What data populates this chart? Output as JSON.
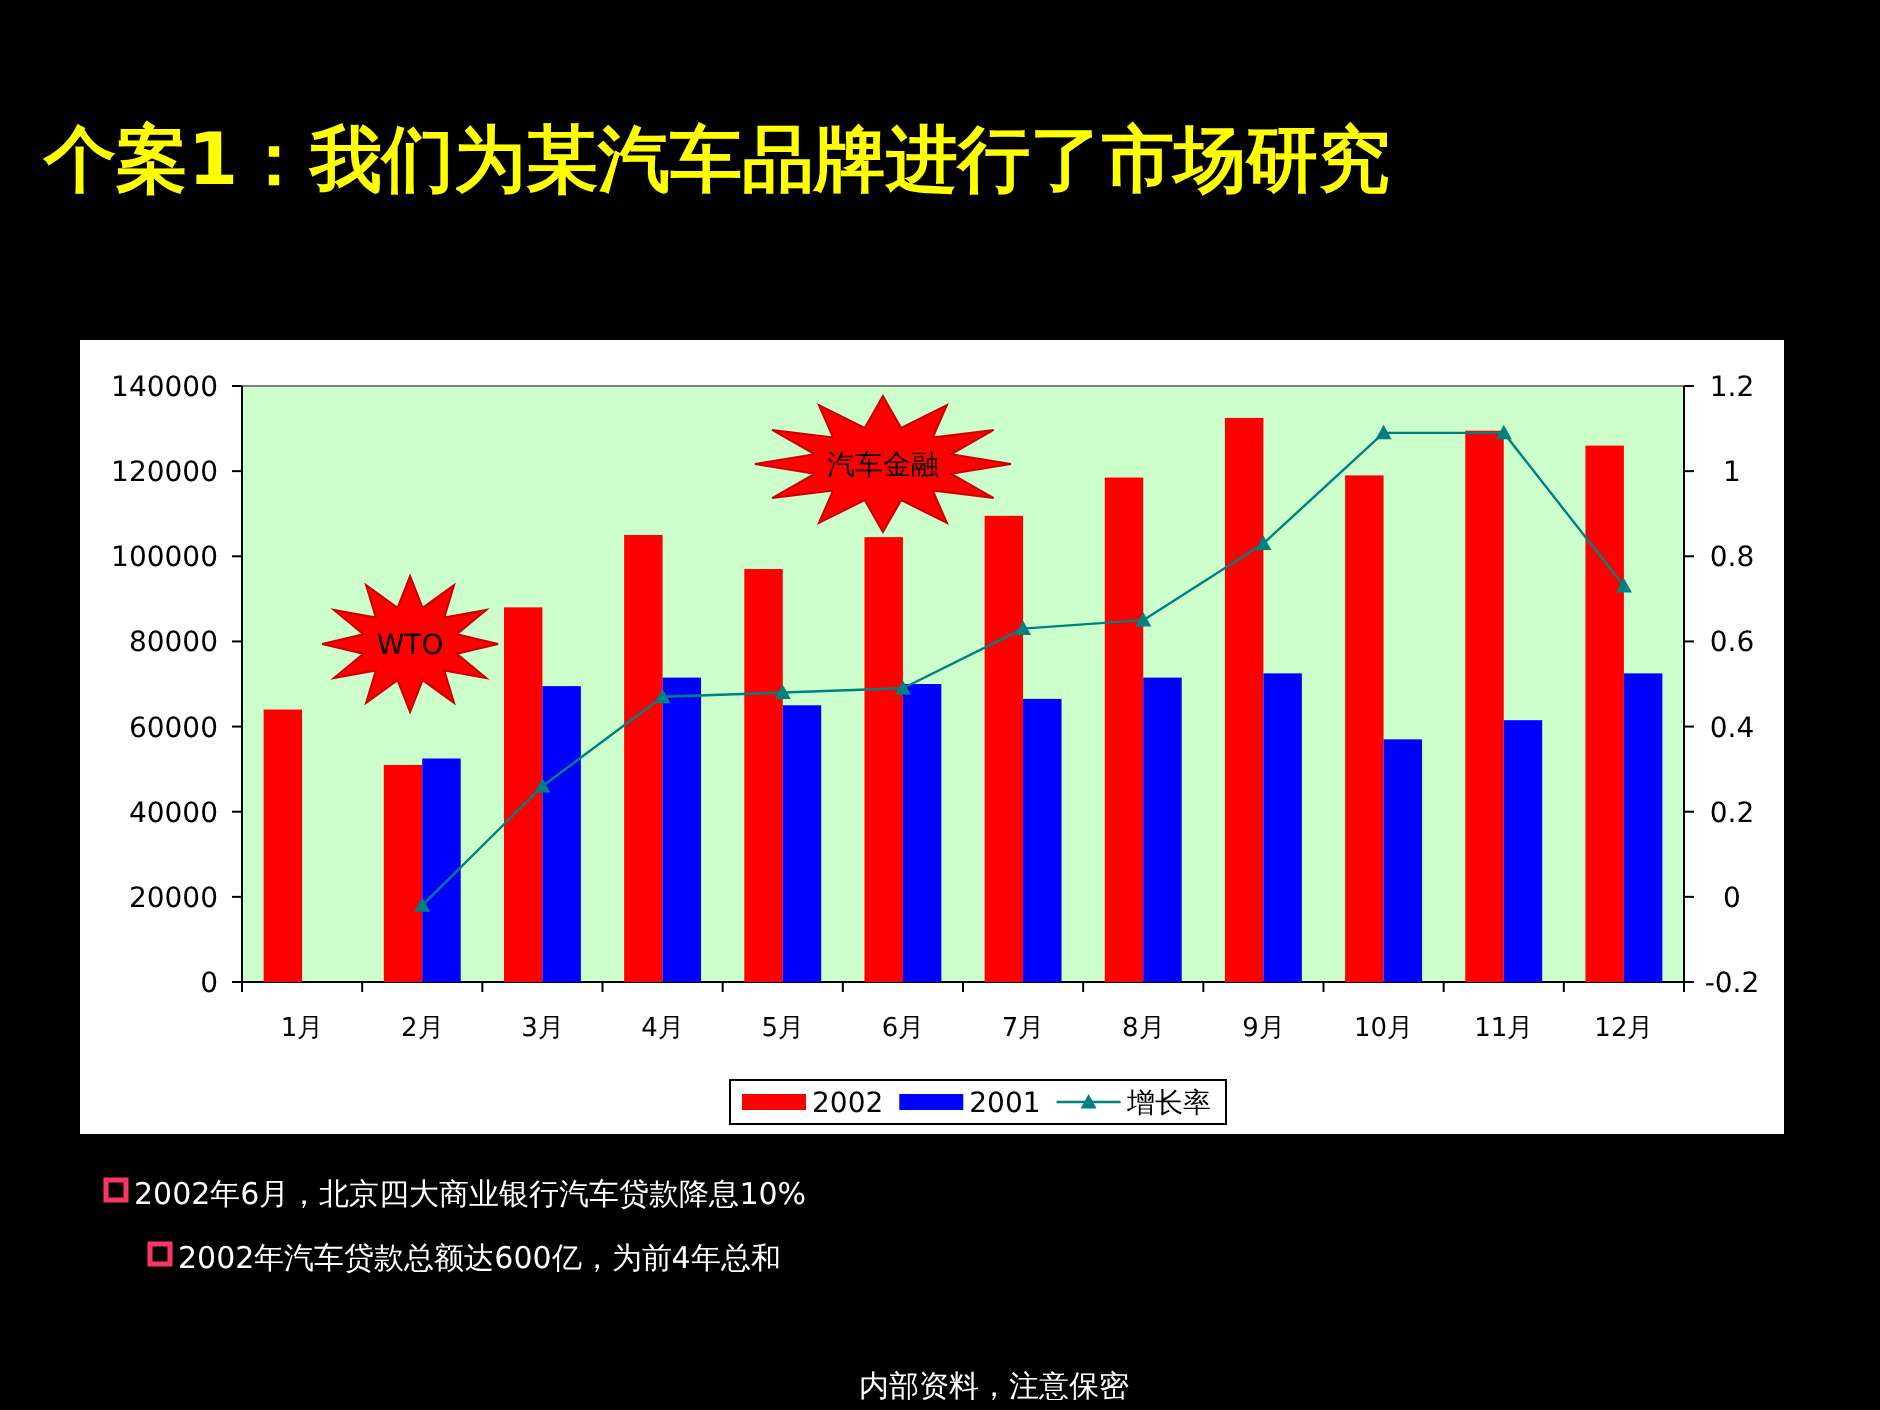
{
  "chart_data": {
    "type": "bar",
    "title": "个案1：我们为某汽车品牌进行了市场研究",
    "categories": [
      "1月",
      "2月",
      "3月",
      "4月",
      "5月",
      "6月",
      "7月",
      "8月",
      "9月",
      "10月",
      "11月",
      "12月"
    ],
    "series": [
      {
        "name": "2002",
        "color": "#ff0000",
        "values": [
          64000,
          51000,
          88000,
          105000,
          97000,
          104500,
          109500,
          118500,
          132500,
          119000,
          129500,
          126000
        ]
      },
      {
        "name": "2001",
        "color": "#0000ff",
        "values": [
          null,
          52500,
          69500,
          71500,
          65000,
          70000,
          66500,
          71500,
          72500,
          57000,
          61500,
          72500
        ]
      },
      {
        "name": "增长率",
        "type": "line",
        "axis": "y2",
        "color": "#008080",
        "marker": "triangle",
        "values": [
          null,
          -0.02,
          0.26,
          0.47,
          0.48,
          0.49,
          0.63,
          0.65,
          0.83,
          1.09,
          1.09,
          0.73
        ]
      }
    ],
    "ylim": [
      0,
      140000
    ],
    "yticks": [
      0,
      20000,
      40000,
      60000,
      80000,
      100000,
      120000,
      140000
    ],
    "y2lim": [
      -0.2,
      1.2
    ],
    "y2ticks": [
      -0.2,
      0,
      0.2,
      0.4,
      0.6,
      0.8,
      1,
      1.2
    ],
    "grid": false,
    "legend": "bottom",
    "annotations": [
      "WTO",
      "汽车金融",
      "2002年6月，北京四大商业银行汽车贷款降息10%",
      "2002年汽车贷款总额达600亿，为前4年总和",
      "内部资料，注意保密"
    ]
  }
}
